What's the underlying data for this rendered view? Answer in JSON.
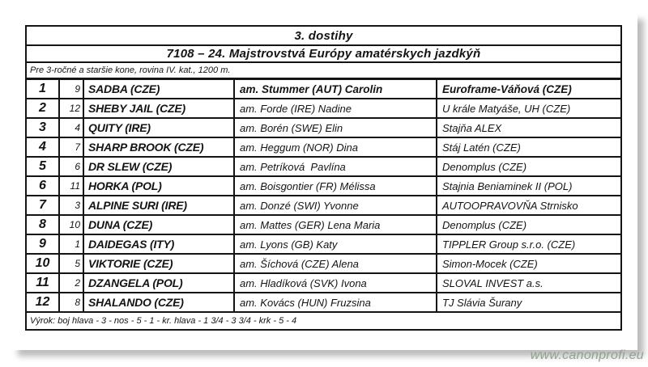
{
  "page": {
    "title": "3. dostihy",
    "subtitle": "7108 – 24. Majstrovstvá Európy amatérskych jazdkýň",
    "conditions": "Pre 3-ročné a staršie kone, rovina IV. kat., 1200 m.",
    "verdict": "Výrok: boj hlava - 3 - nos - 5 - 1 - kr. hlava - 1 3/4 - 3 3/4 - krk - 5 - 4",
    "watermark": "www.canonprofi.eu"
  },
  "colors": {
    "watermark_green": "#8fa48f",
    "border_black": "#141414",
    "page_background": "#ffffff"
  },
  "results": {
    "rows": [
      {
        "rank": "1",
        "num": "9",
        "horse": "SADBA (CZE)",
        "jockey": "am. Stummer (AUT) Carolin",
        "owner": "Euroframe-Váňová (CZE)"
      },
      {
        "rank": "2",
        "num": "12",
        "horse": "SHEBY JAIL (CZE)",
        "jockey": "am. Forde (IRE) Nadine",
        "owner": "U krále Matyáše, UH (CZE)"
      },
      {
        "rank": "3",
        "num": "4",
        "horse": "QUITY (IRE)",
        "jockey": "am. Borén (SWE) Elin",
        "owner": "Stajňa ALEX"
      },
      {
        "rank": "4",
        "num": "7",
        "horse": "SHARP BROOK (CZE)",
        "jockey": "am. Heggum (NOR) Dina",
        "owner": "Stáj Latén (CZE)"
      },
      {
        "rank": "5",
        "num": "6",
        "horse": "DR SLEW (CZE)",
        "jockey": "am. Petríková  Pavlína",
        "owner": "Denomplus (CZE)"
      },
      {
        "rank": "6",
        "num": "11",
        "horse": "HORKA (POL)",
        "jockey": "am. Boisgontier (FR) Mélissa",
        "owner": "Stajnia Beniaminek II (POL)"
      },
      {
        "rank": "7",
        "num": "3",
        "horse": "ALPINE SURI (IRE)",
        "jockey": "am. Donzé (SWI) Yvonne",
        "owner": "AUTOOPRAVOVŇA Strnisko"
      },
      {
        "rank": "8",
        "num": "10",
        "horse": "DUNA (CZE)",
        "jockey": "am. Mattes (GER) Lena Maria",
        "owner": "Denomplus (CZE)"
      },
      {
        "rank": "9",
        "num": "1",
        "horse": "DAIDEGAS (ITY)",
        "jockey": "am. Lyons (GB) Katy",
        "owner": "TIPPLER Group s.r.o. (CZE)"
      },
      {
        "rank": "10",
        "num": "5",
        "horse": "VIKTORIE (CZE)",
        "jockey": "am. Šíchová (CZE) Alena",
        "owner": "Simon-Mocek (CZE)"
      },
      {
        "rank": "11",
        "num": "2",
        "horse": "DZANGELA (POL)",
        "jockey": "am. Hladíková (SVK) Ivona",
        "owner": "SLOVAL INVEST a.s."
      },
      {
        "rank": "12",
        "num": "8",
        "horse": "SHALANDO (CZE)",
        "jockey": "am. Kovács (HUN) Fruzsina",
        "owner": "TJ Slávia Šurany"
      }
    ]
  }
}
